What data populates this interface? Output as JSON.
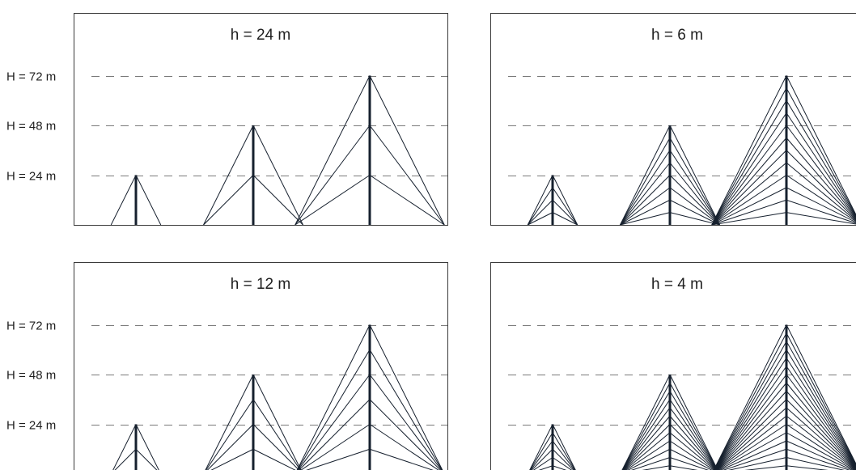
{
  "figure": {
    "unit": "m",
    "height_levels": [
      {
        "label": "H = 72 m",
        "value": 72
      },
      {
        "label": "H = 48 m",
        "value": 48
      },
      {
        "label": "H = 24 m",
        "value": 24
      }
    ],
    "panels": [
      {
        "title": "h = 24 m",
        "spacing": 24,
        "show_height_labels": true
      },
      {
        "title": "h = 6 m",
        "spacing": 6,
        "show_height_labels": false
      },
      {
        "title": "h = 12 m",
        "spacing": 12,
        "show_height_labels": true
      },
      {
        "title": "h = 4 m",
        "spacing": 4,
        "show_height_labels": false
      }
    ],
    "mast_heights": [
      24,
      48,
      72
    ],
    "colors": {
      "frame": "#3a3a3a",
      "mast": "#16202e",
      "dashed_line": "#7a7a7a",
      "text": "#1e1e1e"
    }
  }
}
